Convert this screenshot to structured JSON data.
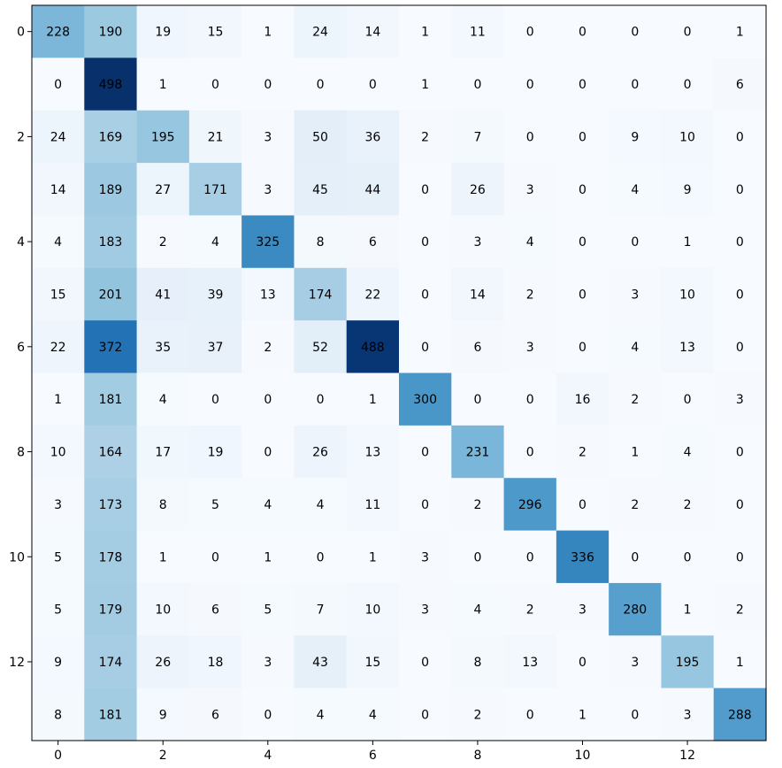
{
  "chart_data": {
    "type": "heatmap",
    "colormap": "Blues",
    "x_ticks": [
      0,
      2,
      4,
      6,
      8,
      10,
      12
    ],
    "y_ticks": [
      0,
      2,
      4,
      6,
      8,
      10,
      12
    ],
    "xlabel": "",
    "matrix": [
      [
        228,
        190,
        19,
        15,
        1,
        24,
        14,
        1,
        11,
        0,
        0,
        0,
        0,
        1
      ],
      [
        0,
        498,
        1,
        0,
        0,
        0,
        0,
        1,
        0,
        0,
        0,
        0,
        0,
        6
      ],
      [
        24,
        169,
        195,
        21,
        3,
        50,
        36,
        2,
        7,
        0,
        0,
        9,
        10,
        0
      ],
      [
        14,
        189,
        27,
        171,
        3,
        45,
        44,
        0,
        26,
        3,
        0,
        4,
        9,
        0
      ],
      [
        4,
        183,
        2,
        4,
        325,
        8,
        6,
        0,
        3,
        4,
        0,
        0,
        1,
        0
      ],
      [
        15,
        201,
        41,
        39,
        13,
        174,
        22,
        0,
        14,
        2,
        0,
        3,
        10,
        0
      ],
      [
        22,
        372,
        35,
        37,
        2,
        52,
        488,
        0,
        6,
        3,
        0,
        4,
        13,
        0
      ],
      [
        1,
        181,
        4,
        0,
        0,
        0,
        1,
        300,
        0,
        0,
        16,
        2,
        0,
        3
      ],
      [
        10,
        164,
        17,
        19,
        0,
        26,
        13,
        0,
        231,
        0,
        2,
        1,
        4,
        0
      ],
      [
        3,
        173,
        8,
        5,
        4,
        4,
        11,
        0,
        2,
        296,
        0,
        2,
        2,
        0
      ],
      [
        5,
        178,
        1,
        0,
        1,
        0,
        1,
        3,
        0,
        0,
        336,
        0,
        0,
        0
      ],
      [
        5,
        179,
        10,
        6,
        5,
        7,
        10,
        3,
        4,
        2,
        3,
        280,
        1,
        2
      ],
      [
        9,
        174,
        26,
        18,
        3,
        43,
        15,
        0,
        8,
        13,
        0,
        3,
        195,
        1
      ],
      [
        8,
        181,
        9,
        6,
        0,
        4,
        4,
        0,
        2,
        0,
        1,
        0,
        3,
        288
      ]
    ],
    "vmin": 0,
    "vmax": 498
  }
}
